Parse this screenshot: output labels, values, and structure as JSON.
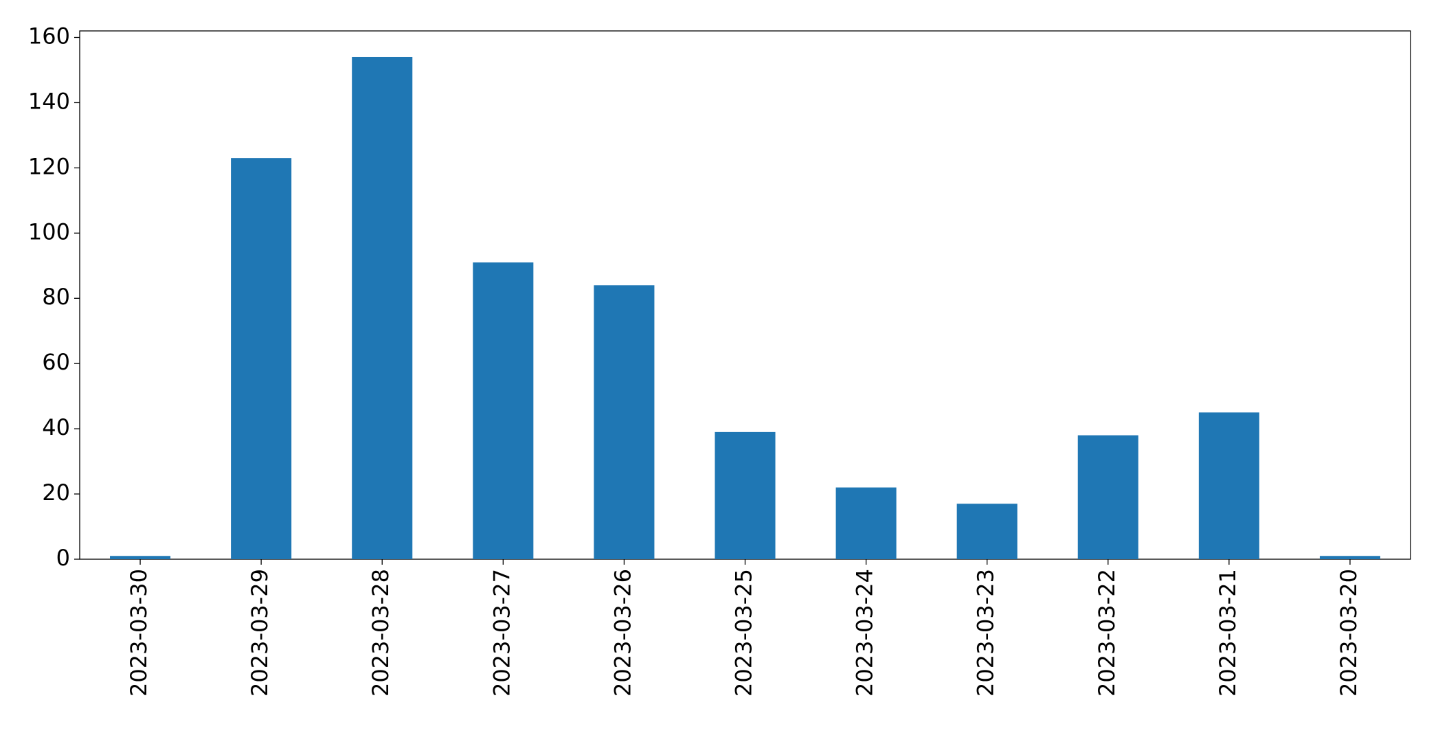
{
  "chart_data": {
    "type": "bar",
    "categories": [
      "2023-03-30",
      "2023-03-29",
      "2023-03-28",
      "2023-03-27",
      "2023-03-26",
      "2023-03-25",
      "2023-03-24",
      "2023-03-23",
      "2023-03-22",
      "2023-03-21",
      "2023-03-20"
    ],
    "values": [
      1,
      123,
      154,
      91,
      84,
      39,
      22,
      17,
      38,
      45,
      1
    ],
    "color": "#1f77b4",
    "ylim": [
      0,
      162
    ],
    "yticks": [
      0,
      20,
      40,
      60,
      80,
      100,
      120,
      140,
      160
    ],
    "grid": false
  }
}
